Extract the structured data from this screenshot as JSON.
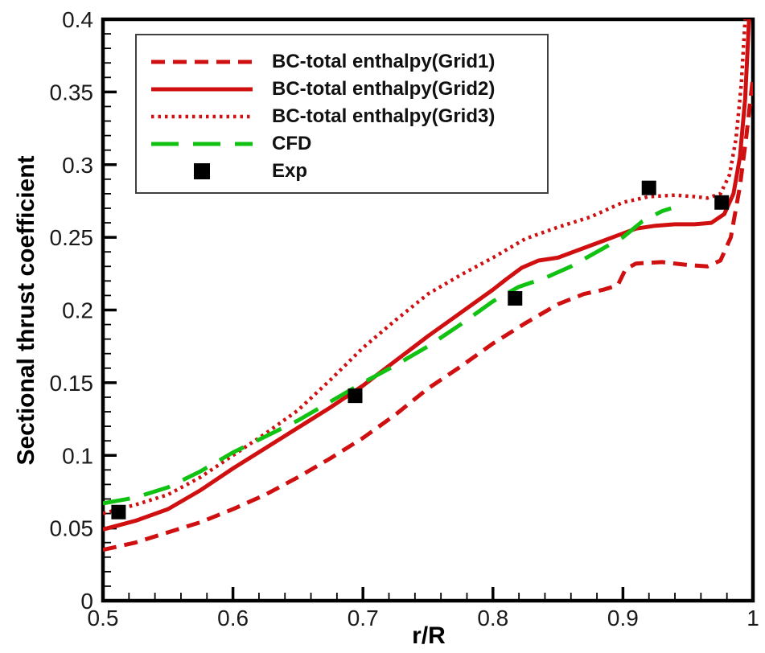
{
  "figure": {
    "background": "#ffffff",
    "frame_color": "#000000"
  },
  "chart_data": {
    "type": "line",
    "title": "",
    "xlabel": "r/R",
    "ylabel": "Sectional thrust coefficient",
    "xlim": [
      0.5,
      1.0
    ],
    "ylim": [
      0,
      0.4
    ],
    "grid": false,
    "legend_position": "top-left",
    "x_major_ticks": [
      0.5,
      0.6,
      0.7,
      0.8,
      0.9,
      1.0
    ],
    "x_tick_labels": [
      "0.5",
      "0.6",
      "0.7",
      "0.8",
      "0.9",
      "1"
    ],
    "x_minor_step": 0.02,
    "y_major_ticks": [
      0,
      0.05,
      0.1,
      0.15,
      0.2,
      0.25,
      0.3,
      0.35,
      0.4
    ],
    "y_tick_labels": [
      "0",
      "0.05",
      "0.1",
      "0.15",
      "0.2",
      "0.25",
      "0.3",
      "0.35",
      "0.4"
    ],
    "y_minor_step": 0.01,
    "series": [
      {
        "name": "BC-total enthalpy(Grid1)",
        "type": "line",
        "color": "#d01010",
        "dash": "dashed",
        "width": 5,
        "points": [
          [
            0.5,
            0.035
          ],
          [
            0.525,
            0.04
          ],
          [
            0.55,
            0.047
          ],
          [
            0.575,
            0.054
          ],
          [
            0.6,
            0.063
          ],
          [
            0.625,
            0.073
          ],
          [
            0.65,
            0.085
          ],
          [
            0.675,
            0.098
          ],
          [
            0.7,
            0.112
          ],
          [
            0.725,
            0.128
          ],
          [
            0.75,
            0.146
          ],
          [
            0.775,
            0.161
          ],
          [
            0.8,
            0.177
          ],
          [
            0.825,
            0.191
          ],
          [
            0.85,
            0.204
          ],
          [
            0.87,
            0.211
          ],
          [
            0.885,
            0.214
          ],
          [
            0.896,
            0.217
          ],
          [
            0.902,
            0.228
          ],
          [
            0.91,
            0.232
          ],
          [
            0.93,
            0.233
          ],
          [
            0.95,
            0.231
          ],
          [
            0.965,
            0.23
          ],
          [
            0.975,
            0.234
          ],
          [
            0.983,
            0.25
          ],
          [
            0.99,
            0.285
          ],
          [
            0.995,
            0.32
          ],
          [
            1.0,
            0.36
          ]
        ]
      },
      {
        "name": "BC-total enthalpy(Grid2)",
        "type": "line",
        "color": "#d01010",
        "dash": "solid",
        "width": 5,
        "points": [
          [
            0.5,
            0.049
          ],
          [
            0.525,
            0.055
          ],
          [
            0.55,
            0.063
          ],
          [
            0.575,
            0.076
          ],
          [
            0.6,
            0.091
          ],
          [
            0.625,
            0.105
          ],
          [
            0.65,
            0.119
          ],
          [
            0.675,
            0.133
          ],
          [
            0.7,
            0.148
          ],
          [
            0.725,
            0.165
          ],
          [
            0.75,
            0.182
          ],
          [
            0.775,
            0.198
          ],
          [
            0.8,
            0.214
          ],
          [
            0.81,
            0.221
          ],
          [
            0.822,
            0.229
          ],
          [
            0.835,
            0.234
          ],
          [
            0.85,
            0.236
          ],
          [
            0.865,
            0.241
          ],
          [
            0.88,
            0.246
          ],
          [
            0.895,
            0.251
          ],
          [
            0.91,
            0.256
          ],
          [
            0.925,
            0.258
          ],
          [
            0.94,
            0.259
          ],
          [
            0.955,
            0.259
          ],
          [
            0.968,
            0.26
          ],
          [
            0.978,
            0.266
          ],
          [
            0.985,
            0.28
          ],
          [
            0.99,
            0.305
          ],
          [
            0.994,
            0.345
          ],
          [
            0.997,
            0.4
          ]
        ]
      },
      {
        "name": "BC-total enthalpy(Grid3)",
        "type": "line",
        "color": "#d01010",
        "dash": "dotted",
        "width": 4.5,
        "points": [
          [
            0.5,
            0.06
          ],
          [
            0.525,
            0.066
          ],
          [
            0.55,
            0.073
          ],
          [
            0.575,
            0.085
          ],
          [
            0.6,
            0.1
          ],
          [
            0.625,
            0.115
          ],
          [
            0.65,
            0.131
          ],
          [
            0.675,
            0.152
          ],
          [
            0.7,
            0.174
          ],
          [
            0.725,
            0.193
          ],
          [
            0.75,
            0.211
          ],
          [
            0.775,
            0.224
          ],
          [
            0.8,
            0.236
          ],
          [
            0.825,
            0.249
          ],
          [
            0.85,
            0.257
          ],
          [
            0.875,
            0.264
          ],
          [
            0.9,
            0.274
          ],
          [
            0.92,
            0.278
          ],
          [
            0.94,
            0.279
          ],
          [
            0.955,
            0.278
          ],
          [
            0.965,
            0.277
          ],
          [
            0.975,
            0.28
          ],
          [
            0.982,
            0.293
          ],
          [
            0.987,
            0.318
          ],
          [
            0.991,
            0.355
          ],
          [
            0.994,
            0.4
          ]
        ]
      },
      {
        "name": "CFD",
        "type": "line",
        "color": "#12c212",
        "dash": "longdash",
        "width": 5,
        "points": [
          [
            0.5,
            0.067
          ],
          [
            0.525,
            0.071
          ],
          [
            0.55,
            0.078
          ],
          [
            0.575,
            0.089
          ],
          [
            0.6,
            0.102
          ],
          [
            0.625,
            0.113
          ],
          [
            0.65,
            0.124
          ],
          [
            0.675,
            0.137
          ],
          [
            0.7,
            0.15
          ],
          [
            0.725,
            0.162
          ],
          [
            0.75,
            0.175
          ],
          [
            0.775,
            0.19
          ],
          [
            0.8,
            0.206
          ],
          [
            0.82,
            0.216
          ],
          [
            0.84,
            0.222
          ],
          [
            0.86,
            0.23
          ],
          [
            0.88,
            0.24
          ],
          [
            0.9,
            0.25
          ],
          [
            0.915,
            0.261
          ],
          [
            0.93,
            0.268
          ],
          [
            0.937,
            0.27
          ]
        ]
      },
      {
        "name": "Exp",
        "type": "scatter",
        "color": "#000000",
        "marker": "square",
        "size": 18,
        "points": [
          [
            0.512,
            0.061
          ],
          [
            0.694,
            0.141
          ],
          [
            0.817,
            0.208
          ],
          [
            0.92,
            0.284
          ],
          [
            0.976,
            0.274
          ]
        ]
      }
    ]
  }
}
